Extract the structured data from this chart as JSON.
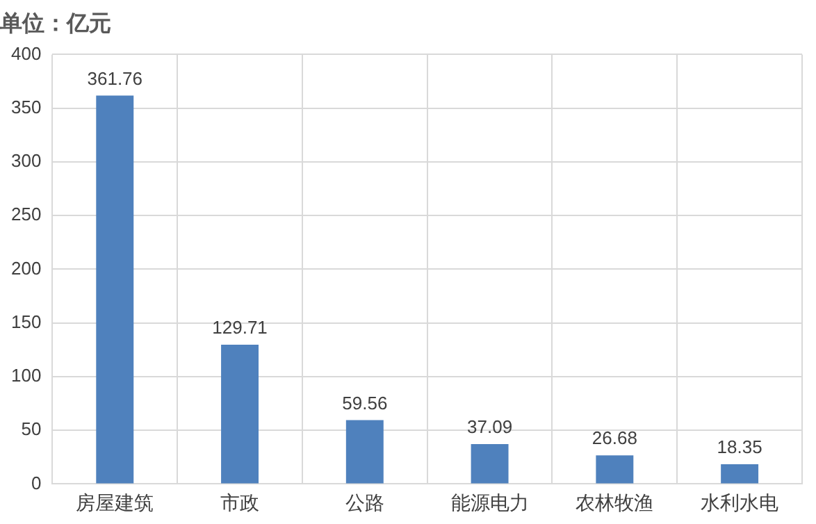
{
  "chart_data": {
    "type": "bar",
    "title": "单位：亿元",
    "categories": [
      "房屋建筑",
      "市政",
      "公路",
      "能源电力",
      "农林牧渔",
      "水利水电"
    ],
    "values": [
      361.76,
      129.71,
      59.56,
      37.09,
      26.68,
      18.35
    ],
    "color": "#4f81bd",
    "ylim": [
      0,
      400
    ],
    "yticks": [
      0,
      50,
      100,
      150,
      200,
      250,
      300,
      350,
      400
    ],
    "grid": true,
    "data_labels": true
  }
}
